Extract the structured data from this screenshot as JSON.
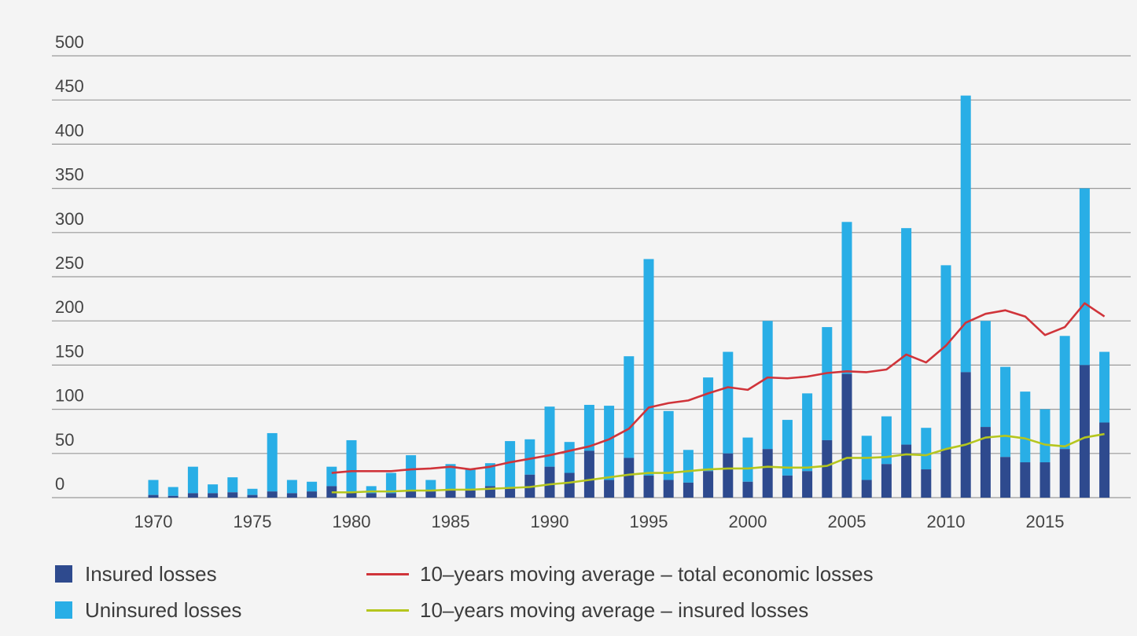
{
  "chart_data": {
    "type": "bar",
    "stacked": true,
    "title": "",
    "xlabel": "",
    "ylabel": "",
    "ylim": [
      0,
      500
    ],
    "y_ticks": [
      0,
      50,
      100,
      150,
      200,
      250,
      300,
      350,
      400,
      450,
      500
    ],
    "x_ticks": [
      1970,
      1975,
      1980,
      1985,
      1990,
      1995,
      2000,
      2005,
      2010,
      2015
    ],
    "grid": true,
    "legend_position": "bottom",
    "colors": {
      "insured": "#2e4a8e",
      "uninsured": "#29aee6",
      "ma_total": "#d0343a",
      "ma_insured": "#b5c61e",
      "gridline": "#9a9a9a",
      "background": "#f4f4f4"
    },
    "categories": [
      1970,
      1971,
      1972,
      1973,
      1974,
      1975,
      1976,
      1977,
      1978,
      1979,
      1980,
      1981,
      1982,
      1983,
      1984,
      1985,
      1986,
      1987,
      1988,
      1989,
      1990,
      1991,
      1992,
      1993,
      1994,
      1995,
      1996,
      1997,
      1998,
      1999,
      2000,
      2001,
      2002,
      2003,
      2004,
      2005,
      2006,
      2007,
      2008,
      2009,
      2010,
      2011,
      2012,
      2013,
      2014,
      2015,
      2016,
      2017,
      2018
    ],
    "series": [
      {
        "name": "Insured losses",
        "values": [
          3,
          2,
          5,
          5,
          6,
          3,
          7,
          5,
          7,
          13,
          7,
          5,
          5,
          8,
          7,
          8,
          8,
          13,
          12,
          26,
          35,
          28,
          53,
          20,
          45,
          25,
          20,
          17,
          30,
          50,
          18,
          55,
          25,
          30,
          65,
          140,
          20,
          38,
          60,
          32,
          55,
          142,
          80,
          46,
          40,
          40,
          55,
          150,
          85
        ]
      },
      {
        "name": "Uninsured losses",
        "values": [
          17,
          10,
          30,
          10,
          17,
          7,
          66,
          15,
          11,
          22,
          58,
          8,
          23,
          40,
          13,
          30,
          24,
          26,
          52,
          40,
          68,
          35,
          52,
          84,
          115,
          245,
          78,
          37,
          106,
          115,
          50,
          145,
          63,
          88,
          128,
          172,
          50,
          54,
          245,
          47,
          208,
          313,
          120,
          102,
          80,
          60,
          128,
          200,
          80
        ]
      }
    ],
    "lines": [
      {
        "name": "10-years moving average – total economic losses",
        "x": [
          1979,
          1980,
          1981,
          1982,
          1983,
          1984,
          1985,
          1986,
          1987,
          1988,
          1989,
          1990,
          1991,
          1992,
          1993,
          1994,
          1995,
          1996,
          1997,
          1998,
          1999,
          2000,
          2001,
          2002,
          2003,
          2004,
          2005,
          2006,
          2007,
          2008,
          2009,
          2010,
          2011,
          2012,
          2013,
          2014,
          2015,
          2016,
          2017,
          2018
        ],
        "values": [
          28,
          30,
          30,
          30,
          32,
          33,
          35,
          32,
          35,
          40,
          44,
          48,
          53,
          58,
          66,
          78,
          102,
          107,
          110,
          118,
          125,
          122,
          136,
          135,
          137,
          141,
          143,
          142,
          145,
          162,
          153,
          172,
          198,
          208,
          212,
          205,
          184,
          193,
          220,
          205
        ]
      },
      {
        "name": "10-years moving average – insured losses",
        "x": [
          1979,
          1980,
          1981,
          1982,
          1983,
          1984,
          1985,
          1986,
          1987,
          1988,
          1989,
          1990,
          1991,
          1992,
          1993,
          1994,
          1995,
          1996,
          1997,
          1998,
          1999,
          2000,
          2001,
          2002,
          2003,
          2004,
          2005,
          2006,
          2007,
          2008,
          2009,
          2010,
          2011,
          2012,
          2013,
          2014,
          2015,
          2016,
          2017,
          2018
        ],
        "values": [
          6,
          6,
          7,
          7,
          8,
          8,
          9,
          9,
          10,
          11,
          12,
          15,
          17,
          20,
          23,
          26,
          28,
          28,
          30,
          32,
          33,
          33,
          35,
          34,
          34,
          36,
          45,
          45,
          46,
          49,
          48,
          55,
          60,
          68,
          70,
          67,
          60,
          58,
          68,
          72
        ]
      }
    ]
  },
  "legend": {
    "insured": "Insured losses",
    "uninsured": "Uninsured losses",
    "ma_total": "10–years moving average – total economic losses",
    "ma_insured": "10–years moving average – insured losses"
  }
}
